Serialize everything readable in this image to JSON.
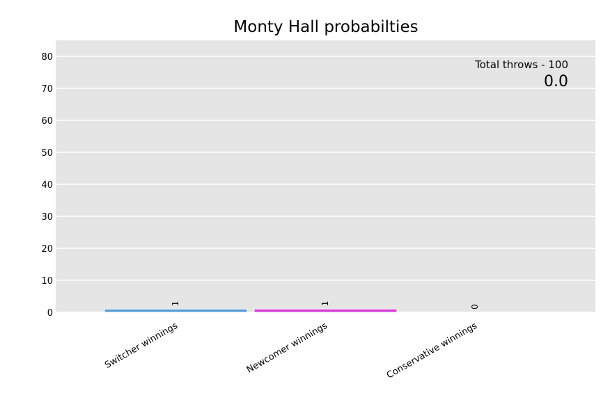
{
  "chart_data": {
    "type": "bar",
    "title": "Monty Hall probabilties",
    "categories": [
      "Switcher winnings",
      "Newcomer winnings",
      "Conservative winnings"
    ],
    "values": [
      1,
      1,
      0
    ],
    "value_labels": [
      "1",
      "1",
      "0"
    ],
    "colors": [
      "#5a9bd5",
      "#d63ad6",
      "#8fd14f"
    ],
    "ylim": [
      0,
      85
    ],
    "yticks": [
      0,
      10,
      20,
      30,
      40,
      50,
      60,
      70,
      80
    ],
    "grid": true,
    "background": "#e5e5e5",
    "annotation": {
      "total_label": "Total throws - 100",
      "value": "0.0"
    }
  }
}
